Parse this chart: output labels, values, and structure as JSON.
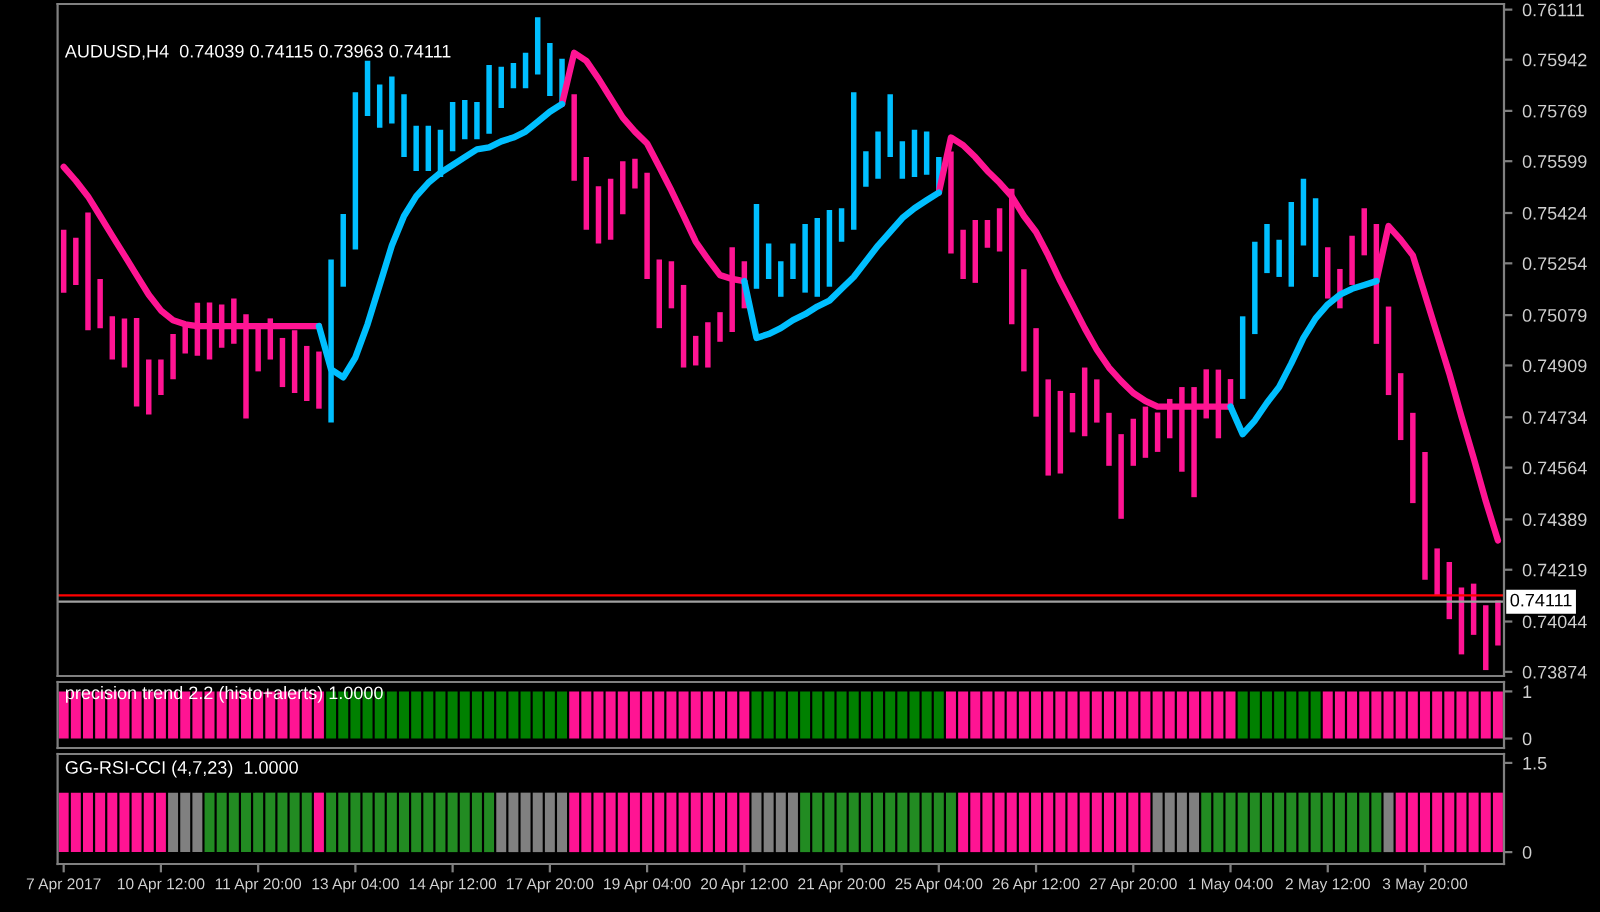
{
  "chart_data": [
    {
      "type": "bar",
      "title": "AUDUSD,H4  0.74039 0.74115 0.73963 0.74111",
      "tick_labels": "y",
      "categories": [
        null,
        null,
        null,
        null,
        null,
        null,
        null,
        null,
        null,
        null,
        null,
        null,
        null,
        null,
        null,
        null,
        null,
        null,
        null,
        null,
        null,
        null,
        null,
        null,
        null,
        null,
        null,
        null,
        null,
        null,
        null,
        null,
        null,
        null,
        null,
        null,
        null,
        null,
        null,
        null,
        null,
        null,
        null,
        null,
        null,
        null,
        null,
        null,
        null,
        null,
        null,
        null,
        null,
        null,
        null,
        null,
        null,
        null,
        null,
        null,
        null,
        null,
        null,
        null,
        null,
        null,
        null,
        null,
        null,
        null,
        null,
        null,
        null,
        null,
        null,
        null,
        null,
        null,
        null,
        null,
        null,
        null,
        null,
        null,
        null,
        null,
        null,
        null,
        null,
        null,
        null,
        null,
        null,
        null,
        null,
        null,
        null,
        null,
        null,
        null,
        null,
        null,
        null,
        null,
        null,
        null,
        null,
        null,
        null,
        null,
        null,
        null,
        null,
        null,
        null,
        null,
        null,
        null,
        null
      ],
      "ylim": [
        0.7386,
        0.7613
      ],
      "yticks": [
        0.76111,
        0.75942,
        0.75769,
        0.75599,
        0.75424,
        0.75254,
        0.75079,
        0.74909,
        0.74734,
        0.74564,
        0.74389,
        0.74219,
        0.74044,
        0.73874
      ],
      "ref_lines": [
        {
          "axis": "y",
          "value": 0.74132,
          "color": "#ff0000"
        },
        {
          "axis": "y",
          "value": 0.74111,
          "label": "0.74111",
          "color": "#a0a0a0"
        }
      ],
      "series": [
        {
          "type": "bar",
          "base": [
            0.75155,
            0.75181,
            0.75028,
            0.75035,
            0.74929,
            0.74902,
            0.7477,
            0.74743,
            0.74809,
            0.74862,
            0.74949,
            0.74942,
            0.74929,
            0.74969,
            0.74982,
            0.7473,
            0.74889,
            0.74929,
            0.74836,
            0.74816,
            0.74789,
            0.74763,
            0.74716,
            0.75175,
            0.75301,
            0.75752,
            0.75712,
            0.75726,
            0.75613,
            0.75566,
            0.75566,
            0.75546,
            0.75633,
            0.75673,
            0.75673,
            0.75692,
            0.75779,
            0.75845,
            0.75845,
            0.75892,
            0.75819,
            0.75792,
            0.75533,
            0.75367,
            0.75321,
            0.75334,
            0.7542,
            0.75507,
            0.75201,
            0.75035,
            0.75102,
            0.74902,
            0.74909,
            0.74902,
            0.74989,
            0.75022,
            0.75102,
            0.75168,
            0.75201,
            0.75141,
            0.75201,
            0.75155,
            0.75141,
            0.75175,
            0.75327,
            0.75367,
            0.75513,
            0.7554,
            0.75613,
            0.7554,
            0.75546,
            0.75553,
            0.75487,
            0.75287,
            0.75201,
            0.75188,
            0.75307,
            0.75294,
            0.75048,
            0.74889,
            0.74736,
            0.74537,
            0.74544,
            0.74683,
            0.7467,
            0.74716,
            0.7457,
            0.74391,
            0.7457,
            0.74597,
            0.74617,
            0.74663,
            0.7455,
            0.74464,
            0.7473,
            0.74663,
            0.7477,
            0.74796,
            0.75015,
            0.75221,
            0.75208,
            0.75175,
            0.75314,
            0.75208,
            0.75135,
            0.75102,
            0.75181,
            0.75281,
            0.74982,
            0.74809,
            0.74657,
            0.74444,
            0.74185,
            0.74132,
            0.74052,
            0.73933,
            0.73999,
            0.7388,
            0.73963
          ],
          "values": [
            0.00212,
            0.00159,
            0.00398,
            0.00166,
            0.00146,
            0.00166,
            0.00299,
            0.00186,
            0.0012,
            0.00153,
            0.00093,
            0.00179,
            0.00193,
            0.00146,
            0.00153,
            0.00352,
            0.00153,
            0.00139,
            0.00166,
            0.00212,
            0.00186,
            0.00193,
            0.00551,
            0.00246,
            0.00531,
            0.00186,
            0.00146,
            0.00159,
            0.00212,
            0.00153,
            0.00153,
            0.00159,
            0.00166,
            0.00133,
            0.00126,
            0.00232,
            0.00139,
            0.00086,
            0.0012,
            0.00193,
            0.00179,
            0.00153,
            0.00292,
            0.00246,
            0.00193,
            0.00206,
            0.00179,
            0.001,
            0.00359,
            0.00232,
            0.00159,
            0.00279,
            0.001,
            0.00153,
            0.001,
            0.00286,
            0.00159,
            0.00286,
            0.0012,
            0.0012,
            0.0012,
            0.00232,
            0.00266,
            0.00259,
            0.00113,
            0.00465,
            0.0012,
            0.00159,
            0.00212,
            0.00126,
            0.00159,
            0.00146,
            0.00126,
            0.00345,
            0.00166,
            0.00212,
            0.00093,
            0.00146,
            0.00458,
            0.00345,
            0.00299,
            0.00325,
            0.00279,
            0.00133,
            0.00232,
            0.00146,
            0.00179,
            0.00286,
            0.00159,
            0.00173,
            0.00133,
            0.00133,
            0.00286,
            0.00372,
            0.00166,
            0.00232,
            0.00093,
            0.00279,
            0.00312,
            0.00166,
            0.00126,
            0.00286,
            0.00226,
            0.00266,
            0.00173,
            0.00133,
            0.00166,
            0.00159,
            0.00405,
            0.00299,
            0.00226,
            0.00305,
            0.00432,
            0.00159,
            0.00193,
            0.00226,
            0.00173,
            0.00219,
            0.00152
          ],
          "colors": [
            "#ff1493",
            "#ff1493",
            "#ff1493",
            "#ff1493",
            "#ff1493",
            "#ff1493",
            "#ff1493",
            "#ff1493",
            "#ff1493",
            "#ff1493",
            "#ff1493",
            "#ff1493",
            "#ff1493",
            "#ff1493",
            "#ff1493",
            "#ff1493",
            "#ff1493",
            "#ff1493",
            "#ff1493",
            "#ff1493",
            "#ff1493",
            "#ff1493",
            "#00bfff",
            "#00bfff",
            "#00bfff",
            "#00bfff",
            "#00bfff",
            "#00bfff",
            "#00bfff",
            "#00bfff",
            "#00bfff",
            "#00bfff",
            "#00bfff",
            "#00bfff",
            "#00bfff",
            "#00bfff",
            "#00bfff",
            "#00bfff",
            "#00bfff",
            "#00bfff",
            "#00bfff",
            "#00bfff",
            "#ff1493",
            "#ff1493",
            "#ff1493",
            "#ff1493",
            "#ff1493",
            "#ff1493",
            "#ff1493",
            "#ff1493",
            "#ff1493",
            "#ff1493",
            "#ff1493",
            "#ff1493",
            "#ff1493",
            "#ff1493",
            "#ff1493",
            "#00bfff",
            "#00bfff",
            "#00bfff",
            "#00bfff",
            "#00bfff",
            "#00bfff",
            "#00bfff",
            "#00bfff",
            "#00bfff",
            "#00bfff",
            "#00bfff",
            "#00bfff",
            "#00bfff",
            "#00bfff",
            "#00bfff",
            "#00bfff",
            "#ff1493",
            "#ff1493",
            "#ff1493",
            "#ff1493",
            "#ff1493",
            "#ff1493",
            "#ff1493",
            "#ff1493",
            "#ff1493",
            "#ff1493",
            "#ff1493",
            "#ff1493",
            "#ff1493",
            "#ff1493",
            "#ff1493",
            "#ff1493",
            "#ff1493",
            "#ff1493",
            "#ff1493",
            "#ff1493",
            "#ff1493",
            "#ff1493",
            "#ff1493",
            "#ff1493",
            "#00bfff",
            "#00bfff",
            "#00bfff",
            "#00bfff",
            "#00bfff",
            "#00bfff",
            "#00bfff",
            "#ff1493",
            "#ff1493",
            "#ff1493",
            "#ff1493",
            "#ff1493",
            "#ff1493",
            "#ff1493",
            "#ff1493",
            "#ff1493",
            "#ff1493",
            "#ff1493",
            "#ff1493",
            "#ff1493",
            "#ff1493",
            "#ff1493"
          ]
        },
        {
          "type": "line",
          "color": "#ff1493",
          "values": [
            0.7558,
            0.75533,
            0.7548,
            0.75414,
            0.75347,
            0.75281,
            0.75214,
            0.75148,
            0.75095,
            0.75062,
            0.75048,
            0.75042,
            0.75042,
            0.75042,
            0.75042,
            0.75042,
            0.75042,
            0.75042,
            0.75042,
            0.75042,
            0.75042,
            0.75042,
            null,
            null,
            null,
            null,
            null,
            null,
            null,
            null,
            null,
            null,
            null,
            null,
            null,
            null,
            null,
            null,
            null,
            null,
            null,
            0.75792,
            0.75965,
            0.75938,
            0.75878,
            0.75812,
            0.75746,
            0.75699,
            0.75659,
            0.7558,
            0.755,
            0.75414,
            0.75327,
            0.75268,
            0.75214,
            0.75201,
            0.75194,
            null,
            null,
            null,
            null,
            null,
            null,
            null,
            null,
            null,
            null,
            null,
            null,
            null,
            null,
            null,
            0.75493,
            0.75679,
            0.75653,
            0.75613,
            0.75566,
            0.75526,
            0.7548,
            0.75414,
            0.7536,
            0.75281,
            0.75194,
            0.75115,
            0.75035,
            0.74962,
            0.74902,
            0.74856,
            0.74816,
            0.74789,
            0.7477,
            0.7477,
            0.7477,
            0.7477,
            0.7477,
            0.7477,
            0.7477,
            null,
            null,
            null,
            null,
            null,
            null,
            null,
            null,
            null,
            null,
            null,
            0.75194,
            0.7538,
            0.75334,
            0.75281,
            0.75148,
            0.75015,
            0.74882,
            0.74736,
            0.74597,
            0.74451,
            0.74318
          ]
        },
        {
          "type": "line",
          "color": "#00bfff",
          "values": [
            null,
            null,
            null,
            null,
            null,
            null,
            null,
            null,
            null,
            null,
            null,
            null,
            null,
            null,
            null,
            null,
            null,
            null,
            null,
            null,
            null,
            0.75042,
            0.74896,
            0.74869,
            0.74936,
            0.75048,
            0.75181,
            0.75314,
            0.75414,
            0.7548,
            0.75526,
            0.7556,
            0.75586,
            0.75613,
            0.75639,
            0.75646,
            0.75666,
            0.75679,
            0.75699,
            0.75732,
            0.75766,
            0.75792,
            null,
            null,
            null,
            null,
            null,
            null,
            null,
            null,
            null,
            null,
            null,
            null,
            null,
            null,
            0.75194,
            0.75002,
            0.75015,
            0.75035,
            0.75062,
            0.75082,
            0.75108,
            0.75128,
            0.75168,
            0.75208,
            0.75261,
            0.75314,
            0.7536,
            0.75407,
            0.7544,
            0.75467,
            0.75493,
            null,
            null,
            null,
            null,
            null,
            null,
            null,
            null,
            null,
            null,
            null,
            null,
            null,
            null,
            null,
            null,
            null,
            null,
            null,
            null,
            null,
            null,
            null,
            0.7477,
            0.74677,
            0.74723,
            0.74783,
            0.74836,
            0.74916,
            0.75002,
            0.75068,
            0.75115,
            0.75148,
            0.75168,
            0.75181,
            0.75194,
            null,
            null,
            null,
            null,
            null,
            null,
            null,
            null,
            null,
            null
          ]
        }
      ]
    },
    {
      "type": "bar",
      "title": "precision trend 2.2 (histo+alerts) 1.0000",
      "tick_labels": "y",
      "categories": [
        null,
        null,
        null,
        null,
        null,
        null,
        null,
        null,
        null,
        null,
        null,
        null,
        null,
        null,
        null,
        null,
        null,
        null,
        null,
        null,
        null,
        null,
        null,
        null,
        null,
        null,
        null,
        null,
        null,
        null,
        null,
        null,
        null,
        null,
        null,
        null,
        null,
        null,
        null,
        null,
        null,
        null,
        null,
        null,
        null,
        null,
        null,
        null,
        null,
        null,
        null,
        null,
        null,
        null,
        null,
        null,
        null,
        null,
        null,
        null,
        null,
        null,
        null,
        null,
        null,
        null,
        null,
        null,
        null,
        null,
        null,
        null,
        null,
        null,
        null,
        null,
        null,
        null,
        null,
        null,
        null,
        null,
        null,
        null,
        null,
        null,
        null,
        null,
        null,
        null,
        null,
        null,
        null,
        null,
        null,
        null,
        null,
        null,
        null,
        null,
        null,
        null,
        null,
        null,
        null,
        null,
        null,
        null,
        null,
        null,
        null,
        null,
        null,
        null,
        null,
        null,
        null,
        null,
        null
      ],
      "ylim": [
        -0.2,
        1.2
      ],
      "yticks": [
        0,
        1
      ],
      "values": [
        1,
        1,
        1,
        1,
        1,
        1,
        1,
        1,
        1,
        1,
        1,
        1,
        1,
        1,
        1,
        1,
        1,
        1,
        1,
        1,
        1,
        1,
        1,
        1,
        1,
        1,
        1,
        1,
        1,
        1,
        1,
        1,
        1,
        1,
        1,
        1,
        1,
        1,
        1,
        1,
        1,
        1,
        1,
        1,
        1,
        1,
        1,
        1,
        1,
        1,
        1,
        1,
        1,
        1,
        1,
        1,
        1,
        1,
        1,
        1,
        1,
        1,
        1,
        1,
        1,
        1,
        1,
        1,
        1,
        1,
        1,
        1,
        1,
        1,
        1,
        1,
        1,
        1,
        1,
        1,
        1,
        1,
        1,
        1,
        1,
        1,
        1,
        1,
        1,
        1,
        1,
        1,
        1,
        1,
        1,
        1,
        1,
        1,
        1,
        1,
        1,
        1,
        1,
        1,
        1,
        1,
        1,
        1,
        1,
        1,
        1,
        1,
        1,
        1,
        1,
        1,
        1,
        1,
        1
      ],
      "colors": [
        "#ff1493",
        "#ff1493",
        "#ff1493",
        "#ff1493",
        "#ff1493",
        "#ff1493",
        "#ff1493",
        "#ff1493",
        "#ff1493",
        "#ff1493",
        "#ff1493",
        "#ff1493",
        "#ff1493",
        "#ff1493",
        "#ff1493",
        "#ff1493",
        "#ff1493",
        "#ff1493",
        "#ff1493",
        "#ff1493",
        "#ff1493",
        "#ff1493",
        "#008000",
        "#008000",
        "#008000",
        "#008000",
        "#008000",
        "#008000",
        "#008000",
        "#008000",
        "#008000",
        "#008000",
        "#008000",
        "#008000",
        "#008000",
        "#008000",
        "#008000",
        "#008000",
        "#008000",
        "#008000",
        "#008000",
        "#008000",
        "#ff1493",
        "#ff1493",
        "#ff1493",
        "#ff1493",
        "#ff1493",
        "#ff1493",
        "#ff1493",
        "#ff1493",
        "#ff1493",
        "#ff1493",
        "#ff1493",
        "#ff1493",
        "#ff1493",
        "#ff1493",
        "#ff1493",
        "#008000",
        "#008000",
        "#008000",
        "#008000",
        "#008000",
        "#008000",
        "#008000",
        "#008000",
        "#008000",
        "#008000",
        "#008000",
        "#008000",
        "#008000",
        "#008000",
        "#008000",
        "#008000",
        "#ff1493",
        "#ff1493",
        "#ff1493",
        "#ff1493",
        "#ff1493",
        "#ff1493",
        "#ff1493",
        "#ff1493",
        "#ff1493",
        "#ff1493",
        "#ff1493",
        "#ff1493",
        "#ff1493",
        "#ff1493",
        "#ff1493",
        "#ff1493",
        "#ff1493",
        "#ff1493",
        "#ff1493",
        "#ff1493",
        "#ff1493",
        "#ff1493",
        "#ff1493",
        "#ff1493",
        "#008000",
        "#008000",
        "#008000",
        "#008000",
        "#008000",
        "#008000",
        "#008000",
        "#ff1493",
        "#ff1493",
        "#ff1493",
        "#ff1493",
        "#ff1493",
        "#ff1493",
        "#ff1493",
        "#ff1493",
        "#ff1493",
        "#ff1493",
        "#ff1493",
        "#ff1493",
        "#ff1493",
        "#ff1493",
        "#ff1493"
      ]
    },
    {
      "type": "bar",
      "title": "GG-RSI-CCI (4,7,23)  1.0000",
      "categories": [
        "7 Apr 2017",
        null,
        null,
        null,
        null,
        null,
        null,
        null,
        "10 Apr 12:00",
        null,
        null,
        null,
        null,
        null,
        null,
        null,
        "11 Apr 20:00",
        null,
        null,
        null,
        null,
        null,
        null,
        null,
        "13 Apr 04:00",
        null,
        null,
        null,
        null,
        null,
        null,
        null,
        "14 Apr 12:00",
        null,
        null,
        null,
        null,
        null,
        null,
        null,
        "17 Apr 20:00",
        null,
        null,
        null,
        null,
        null,
        null,
        null,
        "19 Apr 04:00",
        null,
        null,
        null,
        null,
        null,
        null,
        null,
        "20 Apr 12:00",
        null,
        null,
        null,
        null,
        null,
        null,
        null,
        "21 Apr 20:00",
        null,
        null,
        null,
        null,
        null,
        null,
        null,
        "25 Apr 04:00",
        null,
        null,
        null,
        null,
        null,
        null,
        null,
        "26 Apr 12:00",
        null,
        null,
        null,
        null,
        null,
        null,
        null,
        "27 Apr 20:00",
        null,
        null,
        null,
        null,
        null,
        null,
        null,
        "1 May 04:00",
        null,
        null,
        null,
        null,
        null,
        null,
        null,
        "2 May 12:00",
        null,
        null,
        null,
        null,
        null,
        null,
        null,
        "3 May 20:00",
        null,
        null,
        null,
        null,
        null,
        null
      ],
      "ylim": [
        -0.2,
        1.65
      ],
      "yticks": [
        0,
        1.5
      ],
      "values": [
        1,
        1,
        1,
        1,
        1,
        1,
        1,
        1,
        1,
        1,
        1,
        1,
        1,
        1,
        1,
        1,
        1,
        1,
        1,
        1,
        1,
        1,
        1,
        1,
        1,
        1,
        1,
        1,
        1,
        1,
        1,
        1,
        1,
        1,
        1,
        1,
        1,
        1,
        1,
        1,
        1,
        1,
        1,
        1,
        1,
        1,
        1,
        1,
        1,
        1,
        1,
        1,
        1,
        1,
        1,
        1,
        1,
        1,
        1,
        1,
        1,
        1,
        1,
        1,
        1,
        1,
        1,
        1,
        1,
        1,
        1,
        1,
        1,
        1,
        1,
        1,
        1,
        1,
        1,
        1,
        1,
        1,
        1,
        1,
        1,
        1,
        1,
        1,
        1,
        1,
        1,
        1,
        1,
        1,
        1,
        1,
        1,
        1,
        1,
        1,
        1,
        1,
        1,
        1,
        1,
        1,
        1,
        1,
        1,
        1,
        1,
        1,
        1,
        1,
        1,
        1,
        1,
        1,
        1
      ],
      "colors": [
        "#ff1493",
        "#ff1493",
        "#ff1493",
        "#ff1493",
        "#ff1493",
        "#ff1493",
        "#ff1493",
        "#ff1493",
        "#ff1493",
        "#808080",
        "#808080",
        "#808080",
        "#228b22",
        "#228b22",
        "#228b22",
        "#228b22",
        "#228b22",
        "#228b22",
        "#228b22",
        "#228b22",
        "#228b22",
        "#ff1493",
        "#228b22",
        "#228b22",
        "#228b22",
        "#228b22",
        "#228b22",
        "#228b22",
        "#228b22",
        "#228b22",
        "#228b22",
        "#228b22",
        "#228b22",
        "#228b22",
        "#228b22",
        "#228b22",
        "#808080",
        "#808080",
        "#808080",
        "#808080",
        "#808080",
        "#808080",
        "#ff1493",
        "#ff1493",
        "#ff1493",
        "#ff1493",
        "#ff1493",
        "#ff1493",
        "#ff1493",
        "#ff1493",
        "#ff1493",
        "#ff1493",
        "#ff1493",
        "#ff1493",
        "#ff1493",
        "#ff1493",
        "#ff1493",
        "#808080",
        "#808080",
        "#808080",
        "#808080",
        "#228b22",
        "#228b22",
        "#228b22",
        "#228b22",
        "#228b22",
        "#228b22",
        "#228b22",
        "#228b22",
        "#228b22",
        "#228b22",
        "#228b22",
        "#228b22",
        "#228b22",
        "#ff1493",
        "#ff1493",
        "#ff1493",
        "#ff1493",
        "#ff1493",
        "#ff1493",
        "#ff1493",
        "#ff1493",
        "#ff1493",
        "#ff1493",
        "#ff1493",
        "#ff1493",
        "#ff1493",
        "#ff1493",
        "#ff1493",
        "#ff1493",
        "#808080",
        "#808080",
        "#808080",
        "#808080",
        "#228b22",
        "#228b22",
        "#228b22",
        "#228b22",
        "#228b22",
        "#228b22",
        "#228b22",
        "#228b22",
        "#228b22",
        "#228b22",
        "#228b22",
        "#228b22",
        "#228b22",
        "#228b22",
        "#228b22",
        "#808080",
        "#ff1493",
        "#ff1493",
        "#ff1493",
        "#ff1493",
        "#ff1493",
        "#ff1493",
        "#ff1493",
        "#ff1493",
        "#ff1493"
      ]
    }
  ]
}
